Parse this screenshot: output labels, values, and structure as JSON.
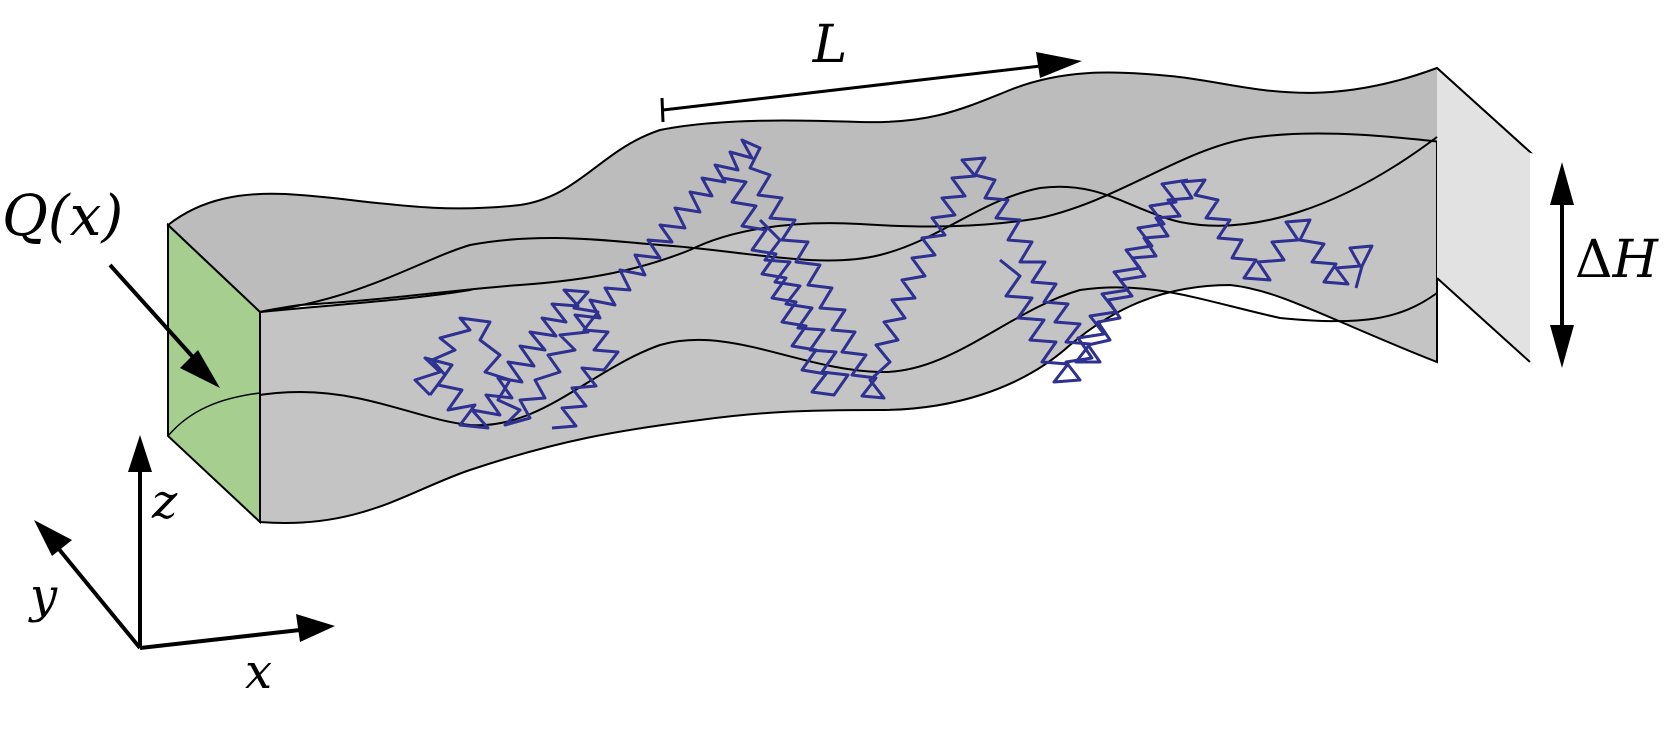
{
  "labels": {
    "flux": "Q(x)",
    "period": "L",
    "height_delta_symbol": "Δ",
    "height_var": "H",
    "axis_x": "x",
    "axis_y": "y",
    "axis_z": "z"
  },
  "colors": {
    "channel_fill": "#c4c4c4",
    "channel_top": "#bcbcbc",
    "outlet_face": "#e2e2e2",
    "inlet_face": "#a6cf8f",
    "trajectory": "#2e3192",
    "outline": "#000000"
  }
}
